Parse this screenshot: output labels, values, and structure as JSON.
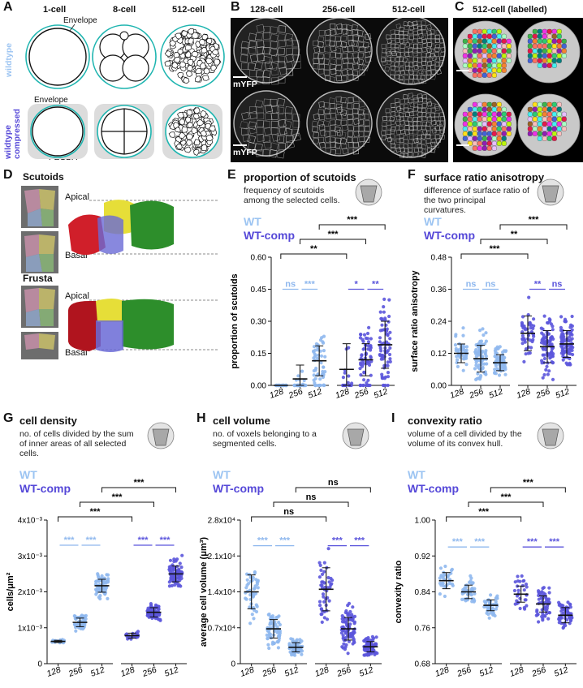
{
  "panels": {
    "A": {
      "label": "A",
      "stages": [
        "1-cell",
        "8-cell",
        "512-cell"
      ],
      "envelope": "Envelope",
      "row_labels": [
        "wildtype",
        "wildtype compressed"
      ],
      "pegda": "PEGDA"
    },
    "B": {
      "label": "B",
      "stages": [
        "128-cell",
        "256-cell",
        "512-cell"
      ],
      "marker": "mYFP"
    },
    "C": {
      "label": "C",
      "title": "512-cell (labelled)"
    },
    "D": {
      "label": "D",
      "scutoids": "Scutoids",
      "frusta": "Frusta",
      "apical": "Apical",
      "basal": "Basal"
    }
  },
  "legend": {
    "wt": "WT",
    "wtcomp": "WT-comp"
  },
  "colors": {
    "wt": "#8fb8ee",
    "wtcomp": "#5b55dc",
    "wt_text": "#9cc4f2",
    "comp_text": "#5548d8"
  },
  "chart_data": [
    {
      "id": "E",
      "type": "scatter",
      "title": "proportion of scutoids",
      "description": "frequency of scutoids among the selected cells.",
      "ylabel": "proportion of scutoids",
      "categories": [
        "128",
        "256",
        "512",
        "128",
        "256",
        "512"
      ],
      "groups": [
        "WT",
        "WT",
        "WT",
        "WT-comp",
        "WT-comp",
        "WT-comp"
      ],
      "ylim": [
        0,
        0.6
      ],
      "yticks": [
        "0.00",
        "0.15",
        "0.30",
        "0.45",
        "0.60"
      ],
      "yticks_v": [
        0,
        0.15,
        0.3,
        0.45,
        0.6
      ],
      "means": [
        0.0,
        0.03,
        0.115,
        0.075,
        0.12,
        0.19
      ],
      "sd": [
        0.0,
        0.065,
        0.07,
        0.12,
        0.075,
        0.11
      ],
      "n": [
        30,
        40,
        55,
        16,
        60,
        70
      ],
      "ranges": [
        [
          0,
          0
        ],
        [
          0,
          0.12
        ],
        [
          0,
          0.29
        ],
        [
          0,
          0.31
        ],
        [
          0,
          0.3
        ],
        [
          0.03,
          0.42
        ]
      ],
      "zero_heavy": [
        1,
        0.75,
        0.2,
        0.6,
        0.2,
        0.05
      ],
      "within": [
        {
          "a": 0,
          "b": 1,
          "label": "ns",
          "y": 0.45
        },
        {
          "a": 1,
          "b": 2,
          "label": "***",
          "y": 0.45
        },
        {
          "a": 3,
          "b": 4,
          "label": "*",
          "y": 0.45
        },
        {
          "a": 4,
          "b": 5,
          "label": "**",
          "y": 0.45
        }
      ],
      "between": [
        {
          "a": 0,
          "b": 3,
          "label": "**",
          "level": 0
        },
        {
          "a": 1,
          "b": 4,
          "label": "***",
          "level": 1
        },
        {
          "a": 2,
          "b": 5,
          "label": "***",
          "level": 2
        }
      ]
    },
    {
      "id": "F",
      "type": "scatter",
      "title": "surface ratio anisotropy",
      "description": "difference of surface ratio of the two principal curvatures.",
      "ylabel": "surface ratio anisotropy",
      "categories": [
        "128",
        "256",
        "512",
        "128",
        "256",
        "512"
      ],
      "groups": [
        "WT",
        "WT",
        "WT",
        "WT-comp",
        "WT-comp",
        "WT-comp"
      ],
      "ylim": [
        0,
        0.48
      ],
      "yticks": [
        "0.00",
        "0.12",
        "0.24",
        "0.36",
        "0.48"
      ],
      "yticks_v": [
        0,
        0.12,
        0.24,
        0.36,
        0.48
      ],
      "means": [
        0.12,
        0.1,
        0.085,
        0.195,
        0.145,
        0.155
      ],
      "sd": [
        0.035,
        0.05,
        0.03,
        0.065,
        0.06,
        0.05
      ],
      "n": [
        45,
        70,
        70,
        45,
        80,
        85
      ],
      "ranges": [
        [
          0.03,
          0.22
        ],
        [
          0.02,
          0.22
        ],
        [
          0.02,
          0.2
        ],
        [
          0.05,
          0.4
        ],
        [
          0.02,
          0.28
        ],
        [
          0.04,
          0.26
        ]
      ],
      "zero_heavy": [
        0,
        0,
        0,
        0,
        0,
        0
      ],
      "within": [
        {
          "a": 0,
          "b": 1,
          "label": "ns",
          "y": 0.36
        },
        {
          "a": 1,
          "b": 2,
          "label": "ns",
          "y": 0.36
        },
        {
          "a": 3,
          "b": 4,
          "label": "**",
          "y": 0.36
        },
        {
          "a": 4,
          "b": 5,
          "label": "ns",
          "y": 0.36
        }
      ],
      "between": [
        {
          "a": 0,
          "b": 3,
          "label": "***",
          "level": 0
        },
        {
          "a": 1,
          "b": 4,
          "label": "**",
          "level": 1
        },
        {
          "a": 2,
          "b": 5,
          "label": "***",
          "level": 2
        }
      ]
    },
    {
      "id": "G",
      "type": "scatter",
      "title": "cell density",
      "description": "no. of cells divided by the sum of inner areas of all selected cells.",
      "ylabel": "cells/μm²",
      "categories": [
        "128",
        "256",
        "512",
        "128",
        "256",
        "512"
      ],
      "groups": [
        "WT",
        "WT",
        "WT",
        "WT-comp",
        "WT-comp",
        "WT-comp"
      ],
      "ylim": [
        0,
        0.004
      ],
      "yticks": [
        "0",
        "1x10⁻³",
        "2x10⁻³",
        "3x10⁻³",
        "4x10⁻³"
      ],
      "yticks_v": [
        0,
        0.001,
        0.002,
        0.003,
        0.004
      ],
      "means": [
        0.00062,
        0.00115,
        0.00217,
        0.00078,
        0.00143,
        0.0025
      ],
      "sd": [
        3e-05,
        0.00012,
        0.00018,
        7e-05,
        0.00013,
        0.00022
      ],
      "n": [
        20,
        50,
        65,
        20,
        70,
        80
      ],
      "ranges": [
        [
          0.00058,
          0.00068
        ],
        [
          0.0009,
          0.0014
        ],
        [
          0.0018,
          0.0026
        ],
        [
          0.00068,
          0.0009
        ],
        [
          0.0012,
          0.0017
        ],
        [
          0.0021,
          0.0031
        ]
      ],
      "zero_heavy": [
        0,
        0,
        0,
        0,
        0,
        0
      ],
      "within": [
        {
          "a": 0,
          "b": 1,
          "label": "***",
          "y": 0.0033
        },
        {
          "a": 1,
          "b": 2,
          "label": "***",
          "y": 0.0033
        },
        {
          "a": 3,
          "b": 4,
          "label": "***",
          "y": 0.0033
        },
        {
          "a": 4,
          "b": 5,
          "label": "***",
          "y": 0.0033
        }
      ],
      "between": [
        {
          "a": 0,
          "b": 3,
          "label": "***",
          "level": 0
        },
        {
          "a": 1,
          "b": 4,
          "label": "***",
          "level": 1
        },
        {
          "a": 2,
          "b": 5,
          "label": "***",
          "level": 2
        }
      ]
    },
    {
      "id": "H",
      "type": "scatter",
      "title": "cell volume",
      "description": "no. of voxels belonging to a segmented cells.",
      "ylabel": "average cell volume (μm³)",
      "categories": [
        "128",
        "256",
        "512",
        "128",
        "256",
        "512"
      ],
      "groups": [
        "WT",
        "WT",
        "WT",
        "WT-comp",
        "WT-comp",
        "WT-comp"
      ],
      "ylim": [
        0,
        28000
      ],
      "yticks": [
        "0",
        "0.7x10⁴",
        "1.4x10⁴",
        "2.1x10⁴",
        "2.8x10⁴"
      ],
      "yticks_v": [
        0,
        7000,
        14000,
        21000,
        28000
      ],
      "means": [
        14000,
        6800,
        3200,
        14500,
        6800,
        3300
      ],
      "sd": [
        3300,
        1800,
        900,
        4200,
        2200,
        1000
      ],
      "n": [
        45,
        65,
        60,
        45,
        85,
        85
      ],
      "ranges": [
        [
          7000,
          18000
        ],
        [
          3000,
          10000
        ],
        [
          1500,
          5000
        ],
        [
          7000,
          23000
        ],
        [
          2000,
          12000
        ],
        [
          1500,
          5500
        ]
      ],
      "zero_heavy": [
        0,
        0,
        0,
        0,
        0,
        0
      ],
      "within": [
        {
          "a": 0,
          "b": 1,
          "label": "***",
          "y": 23000
        },
        {
          "a": 1,
          "b": 2,
          "label": "***",
          "y": 23000
        },
        {
          "a": 3,
          "b": 4,
          "label": "***",
          "y": 23000
        },
        {
          "a": 4,
          "b": 5,
          "label": "***",
          "y": 23000
        }
      ],
      "between": [
        {
          "a": 0,
          "b": 3,
          "label": "ns",
          "level": 0
        },
        {
          "a": 1,
          "b": 4,
          "label": "ns",
          "level": 1
        },
        {
          "a": 2,
          "b": 5,
          "label": "ns",
          "level": 2
        }
      ]
    },
    {
      "id": "I",
      "type": "scatter",
      "title": "convexity ratio",
      "description": "volume of a cell divided by the volume of its convex hull.",
      "ylabel": "convexity ratio",
      "categories": [
        "128",
        "256",
        "512",
        "128",
        "256",
        "512"
      ],
      "groups": [
        "WT",
        "WT",
        "WT",
        "WT-comp",
        "WT-comp",
        "WT-comp"
      ],
      "ylim": [
        0.68,
        1.0
      ],
      "yticks": [
        "0.68",
        "0.76",
        "0.84",
        "0.92",
        "1.00"
      ],
      "yticks_v": [
        0.68,
        0.76,
        0.84,
        0.92,
        1.0
      ],
      "means": [
        0.865,
        0.84,
        0.81,
        0.835,
        0.813,
        0.788
      ],
      "sd": [
        0.018,
        0.015,
        0.012,
        0.018,
        0.018,
        0.017
      ],
      "n": [
        30,
        45,
        45,
        30,
        55,
        55
      ],
      "ranges": [
        [
          0.82,
          0.9
        ],
        [
          0.8,
          0.88
        ],
        [
          0.78,
          0.84
        ],
        [
          0.8,
          0.88
        ],
        [
          0.77,
          0.86
        ],
        [
          0.74,
          0.82
        ]
      ],
      "zero_heavy": [
        0,
        0,
        0,
        0,
        0,
        0
      ],
      "within": [
        {
          "a": 0,
          "b": 1,
          "label": "***",
          "y": 0.94
        },
        {
          "a": 1,
          "b": 2,
          "label": "***",
          "y": 0.94
        },
        {
          "a": 3,
          "b": 4,
          "label": "***",
          "y": 0.94
        },
        {
          "a": 4,
          "b": 5,
          "label": "***",
          "y": 0.94
        }
      ],
      "between": [
        {
          "a": 0,
          "b": 3,
          "label": "***",
          "level": 0
        },
        {
          "a": 1,
          "b": 4,
          "label": "***",
          "level": 1
        },
        {
          "a": 2,
          "b": 5,
          "label": "***",
          "level": 2
        }
      ]
    }
  ]
}
